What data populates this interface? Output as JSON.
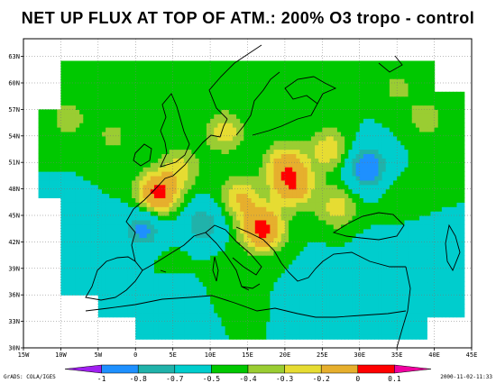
{
  "title": "NET UP FLUX AT TOP OF ATM.: 200% O3 tropo - control",
  "footer": {
    "left": "GrADS: COLA/IGES",
    "right": "2000-11-02-11:33"
  },
  "axes": {
    "lon_range": [
      -15,
      45
    ],
    "lat_range": [
      30,
      65
    ],
    "x_ticks": [
      "15W",
      "10W",
      "5W",
      "0",
      "5E",
      "10E",
      "15E",
      "20E",
      "25E",
      "30E",
      "35E",
      "40E",
      "45E"
    ],
    "y_ticks": [
      "30N",
      "33N",
      "36N",
      "39N",
      "42N",
      "45N",
      "48N",
      "51N",
      "54N",
      "57N",
      "60N",
      "63N"
    ],
    "grid": true
  },
  "colorbar": {
    "labels": [
      "-1",
      "-0.8",
      "-0.7",
      "-0.5",
      "-0.4",
      "-0.3",
      "-0.2",
      "0",
      "0.1"
    ],
    "colors": [
      "#a020f0",
      "#1e90ff",
      "#20b2aa",
      "#00cdcd",
      "#00c800",
      "#9acd32",
      "#e6dc32",
      "#e6af2d",
      "#ff0000",
      "#f000a0"
    ],
    "arrow_left": true,
    "arrow_right": true
  },
  "chart_data": {
    "type": "heatmap",
    "title": "NET UP FLUX AT TOP OF ATM.: 200% O3 tropo - control",
    "x_range": [
      -15,
      45
    ],
    "y_range": [
      30,
      65
    ],
    "levels": [
      -1,
      -0.8,
      -0.7,
      -0.5,
      -0.4,
      -0.3,
      -0.2,
      0,
      0.1
    ],
    "base_value": -0.5,
    "features": [
      {
        "lon": -9.0,
        "lat": 56.0,
        "value": -0.35
      },
      {
        "lon": -3.0,
        "lat": 54.0,
        "value": -0.38
      },
      {
        "lon": 6.0,
        "lat": 50.5,
        "value": -0.28
      },
      {
        "lon": 3.0,
        "lat": 47.5,
        "value": 0.05
      },
      {
        "lon": 14.0,
        "lat": 47.0,
        "value": -0.2
      },
      {
        "lon": 17.0,
        "lat": 43.5,
        "value": 0.06
      },
      {
        "lon": 21.0,
        "lat": 48.5,
        "value": -0.05
      },
      {
        "lon": 20.0,
        "lat": 51.0,
        "value": -0.2
      },
      {
        "lon": 26.0,
        "lat": 52.5,
        "value": -0.22
      },
      {
        "lon": 27.0,
        "lat": 46.0,
        "value": -0.25
      },
      {
        "lon": 31.0,
        "lat": 50.5,
        "value": -0.95
      },
      {
        "lon": 1.0,
        "lat": 43.5,
        "value": -0.85
      },
      {
        "lon": 9.0,
        "lat": 44.0,
        "value": -0.8
      },
      {
        "lon": 12.0,
        "lat": 54.5,
        "value": -0.25
      },
      {
        "lon": 35.0,
        "lat": 59.5,
        "value": -0.38
      },
      {
        "lon": 39.0,
        "lat": 56.0,
        "value": -0.35
      },
      {
        "lon": 36.0,
        "lat": 47.0,
        "value": -0.4
      },
      {
        "lon": 5.0,
        "lat": 40.0,
        "value": -0.45
      },
      {
        "lon": 12.0,
        "lat": 39.0,
        "value": -0.45
      },
      {
        "lon": -10.0,
        "lat": 44.0,
        "value": -0.65
      },
      {
        "lon": 5.0,
        "lat": 36.0,
        "value": -0.6
      },
      {
        "lon": 25.0,
        "lat": 38.0,
        "value": -0.6
      },
      {
        "lon": 32.0,
        "lat": 40.0,
        "value": -0.62
      },
      {
        "lon": 38.0,
        "lat": 42.0,
        "value": -0.6
      }
    ]
  }
}
